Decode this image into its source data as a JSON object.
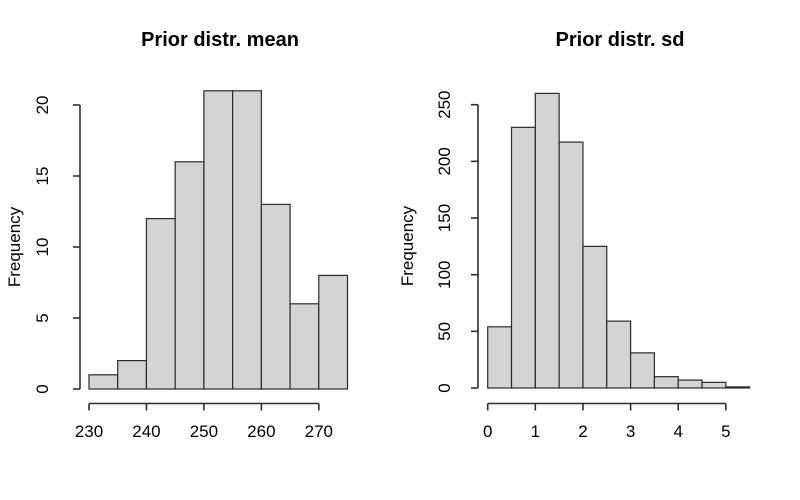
{
  "figure": {
    "background": "#ffffff"
  },
  "colors": {
    "bar_fill": "#d4d4d4",
    "bar_border": "#2b2b2b",
    "axis": "#2e2e2e",
    "text": "#000000"
  },
  "chart_data": [
    {
      "type": "bar",
      "subtype": "histogram",
      "title": "Prior distr. mean",
      "xlabel": "",
      "ylabel": "Frequency",
      "bin_edges": [
        230,
        235,
        240,
        245,
        250,
        255,
        260,
        265,
        270,
        275
      ],
      "values": [
        1,
        2,
        12,
        16,
        21,
        21,
        13,
        6,
        8
      ],
      "x_ticks": [
        230,
        240,
        250,
        260,
        270
      ],
      "y_ticks": [
        0,
        5,
        10,
        15,
        20
      ],
      "xlim": [
        230,
        275
      ],
      "ylim": [
        0,
        21
      ],
      "grid": false,
      "legend": false
    },
    {
      "type": "bar",
      "subtype": "histogram",
      "title": "Prior distr. sd",
      "xlabel": "",
      "ylabel": "Frequency",
      "bin_edges": [
        0,
        0.5,
        1,
        1.5,
        2,
        2.5,
        3,
        3.5,
        4,
        4.5,
        5,
        5.5
      ],
      "values": [
        54,
        230,
        260,
        217,
        125,
        59,
        31,
        10,
        7,
        5,
        1
      ],
      "x_ticks": [
        0,
        1,
        2,
        3,
        4,
        5
      ],
      "y_ticks": [
        0,
        50,
        100,
        150,
        200,
        250
      ],
      "xlim": [
        0,
        5.5
      ],
      "ylim": [
        0,
        260
      ],
      "grid": false,
      "legend": false
    }
  ]
}
